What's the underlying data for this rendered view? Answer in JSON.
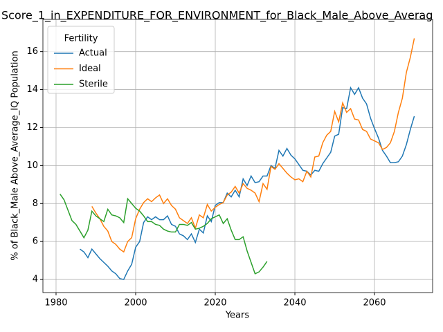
{
  "chart_data": {
    "type": "line",
    "title": "Score_1_in_EXPENDITURE_FOR_ENVIRONMENT_for_Black_Male_Above_Averag",
    "xlabel": "Years",
    "ylabel": "% of Black_Male Above_Average_IQ Population",
    "legend_title": "Fertility",
    "legend": "upper left",
    "grid": true,
    "x": [
      1981,
      1982,
      1983,
      1984,
      1985,
      1986,
      1987,
      1988,
      1989,
      1990,
      1991,
      1992,
      1993,
      1994,
      1995,
      1996,
      1997,
      1998,
      1999,
      2000,
      2001,
      2002,
      2003,
      2004,
      2005,
      2006,
      2007,
      2008,
      2009,
      2010,
      2011,
      2012,
      2013,
      2014,
      2015,
      2016,
      2017,
      2018,
      2019,
      2020,
      2021,
      2022,
      2023,
      2024,
      2025,
      2026,
      2027,
      2028,
      2029,
      2030,
      2031,
      2032,
      2033,
      2034,
      2035,
      2036,
      2037,
      2038,
      2039,
      2040,
      2041,
      2042,
      2043,
      2044,
      2045,
      2046,
      2047,
      2048,
      2049,
      2050,
      2051,
      2052,
      2053,
      2054,
      2055,
      2056,
      2057,
      2058,
      2059,
      2060,
      2061,
      2062,
      2063,
      2064,
      2065,
      2066,
      2067,
      2068,
      2069,
      2070
    ],
    "xlim": [
      1976.7,
      2074.6
    ],
    "xticks": [
      1980,
      2000,
      2020,
      2040,
      2060
    ],
    "ylim": [
      3.31,
      17.7
    ],
    "yticks": [
      4,
      6,
      8,
      10,
      12,
      14,
      16
    ],
    "series": [
      {
        "name": "Actual",
        "color": "#1f77b4",
        "values": [
          null,
          null,
          null,
          null,
          null,
          5.6,
          5.45,
          5.15,
          5.6,
          5.35,
          5.1,
          4.9,
          4.7,
          4.45,
          4.3,
          4.05,
          4.0,
          4.45,
          4.8,
          5.7,
          6.0,
          7.0,
          7.3,
          7.15,
          7.3,
          7.15,
          7.15,
          7.35,
          6.9,
          6.8,
          6.4,
          6.3,
          6.1,
          6.4,
          5.95,
          6.65,
          6.45,
          7.35,
          7.05,
          7.9,
          8.05,
          8.05,
          8.55,
          8.35,
          8.7,
          8.35,
          9.3,
          8.95,
          9.45,
          9.1,
          9.15,
          9.45,
          9.45,
          10.0,
          9.85,
          10.8,
          10.5,
          10.9,
          10.55,
          10.35,
          10.05,
          9.75,
          9.7,
          9.5,
          9.75,
          9.7,
          10.1,
          10.4,
          10.7,
          11.55,
          11.65,
          13.05,
          13.0,
          14.1,
          13.75,
          14.1,
          13.55,
          13.25,
          12.5,
          11.95,
          11.45,
          10.8,
          10.5,
          10.15,
          10.15,
          10.2,
          10.5,
          11.1,
          11.9,
          12.6
        ]
      },
      {
        "name": "Ideal",
        "color": "#ff7f0e",
        "values": [
          null,
          null,
          null,
          null,
          null,
          null,
          null,
          null,
          7.85,
          7.5,
          7.2,
          6.8,
          6.55,
          6.0,
          5.85,
          5.6,
          5.45,
          6.0,
          6.2,
          7.2,
          7.7,
          8.05,
          8.25,
          8.1,
          8.3,
          8.45,
          8.0,
          8.25,
          7.9,
          7.7,
          7.25,
          7.1,
          6.95,
          7.25,
          6.7,
          7.4,
          7.25,
          7.95,
          7.6,
          7.8,
          7.95,
          8.05,
          8.45,
          8.6,
          8.9,
          8.55,
          9.05,
          8.8,
          8.7,
          8.55,
          8.1,
          9.05,
          8.75,
          9.95,
          9.8,
          10.1,
          9.85,
          9.6,
          9.4,
          9.25,
          9.3,
          9.15,
          9.7,
          9.4,
          10.45,
          10.5,
          11.2,
          11.6,
          11.8,
          12.85,
          12.3,
          13.3,
          12.8,
          13.0,
          12.45,
          12.4,
          11.9,
          11.8,
          11.4,
          11.3,
          11.2,
          10.85,
          10.95,
          11.2,
          11.8,
          12.8,
          13.55,
          14.9,
          15.7,
          16.7
        ]
      },
      {
        "name": "Sterile",
        "color": "#2ca02c",
        "values": [
          8.5,
          8.2,
          7.65,
          7.1,
          6.9,
          6.55,
          6.2,
          6.6,
          7.6,
          7.35,
          7.2,
          7.05,
          7.7,
          7.4,
          7.35,
          7.25,
          7.0,
          8.25,
          8.0,
          7.75,
          7.6,
          7.35,
          7.05,
          7.05,
          6.9,
          6.85,
          6.65,
          6.55,
          6.5,
          6.5,
          6.9,
          6.9,
          6.85,
          7.0,
          6.65,
          6.7,
          6.8,
          6.95,
          7.2,
          7.3,
          7.4,
          6.95,
          7.2,
          6.6,
          6.1,
          6.1,
          6.25,
          5.5,
          4.9,
          4.3,
          4.4,
          4.65,
          4.95,
          null,
          null,
          null,
          null,
          null,
          null,
          null,
          null,
          null,
          null,
          null,
          null,
          null,
          null,
          null,
          null,
          null,
          null,
          null,
          null,
          null,
          null,
          null,
          null,
          null,
          null,
          null,
          null,
          null,
          null,
          null,
          null,
          null,
          null,
          null,
          null,
          null
        ]
      }
    ]
  }
}
